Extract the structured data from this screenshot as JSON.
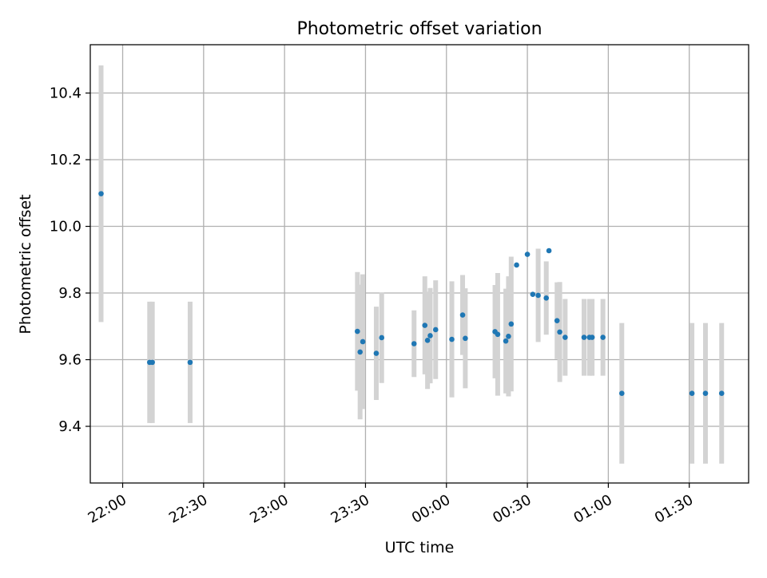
{
  "chart_data": {
    "type": "scatter",
    "title": "Photometric offset variation",
    "xlabel": "UTC time",
    "ylabel": "Photometric offset",
    "x_axis_type": "time",
    "x_reference_date": "",
    "xlim": [
      "21:48",
      "01:52"
    ],
    "ylim": [
      9.23,
      10.545
    ],
    "grid": true,
    "x_ticks": [
      "22:00",
      "22:30",
      "23:00",
      "23:30",
      "00:00",
      "00:30",
      "01:00",
      "01:30"
    ],
    "y_ticks": [
      9.4,
      9.6,
      9.8,
      10.0,
      10.2,
      10.4
    ],
    "y_tick_labels": [
      "9.4",
      "9.6",
      "9.8",
      "10.0",
      "10.2",
      "10.4"
    ],
    "colors": {
      "points": "#1f77b4",
      "errorbars": "#d3d3d3",
      "grid": "#b0b0b0"
    },
    "series": [
      {
        "points": [
          {
            "x": "21:52",
            "y": 10.098,
            "err": 0.385
          },
          {
            "x": "22:10",
            "y": 9.592,
            "err": 0.182
          },
          {
            "x": "22:11",
            "y": 9.592,
            "err": 0.182
          },
          {
            "x": "22:25",
            "y": 9.592,
            "err": 0.182
          },
          {
            "x": "23:27",
            "y": 9.685,
            "err": 0.178
          },
          {
            "x": "23:28",
            "y": 9.623,
            "err": 0.202
          },
          {
            "x": "23:29",
            "y": 9.654,
            "err": 0.202
          },
          {
            "x": "23:34",
            "y": 9.619,
            "err": 0.14
          },
          {
            "x": "23:36",
            "y": 9.666,
            "err": 0.136
          },
          {
            "x": "23:48",
            "y": 9.648,
            "err": 0.1
          },
          {
            "x": "23:52",
            "y": 9.703,
            "err": 0.147
          },
          {
            "x": "23:53",
            "y": 9.658,
            "err": 0.146
          },
          {
            "x": "23:54",
            "y": 9.672,
            "err": 0.143
          },
          {
            "x": "23:56",
            "y": 9.69,
            "err": 0.148
          },
          {
            "x": "00:02",
            "y": 9.661,
            "err": 0.174
          },
          {
            "x": "00:06",
            "y": 9.734,
            "err": 0.12
          },
          {
            "x": "00:07",
            "y": 9.664,
            "err": 0.15
          },
          {
            "x": "00:18",
            "y": 9.684,
            "err": 0.14
          },
          {
            "x": "00:19",
            "y": 9.676,
            "err": 0.184
          },
          {
            "x": "00:22",
            "y": 9.656,
            "err": 0.157
          },
          {
            "x": "00:23",
            "y": 9.67,
            "err": 0.18
          },
          {
            "x": "00:24",
            "y": 9.707,
            "err": 0.202
          },
          {
            "x": "00:26",
            "y": 9.884,
            "err": 0.0
          },
          {
            "x": "00:30",
            "y": 9.916,
            "err": 0.0
          },
          {
            "x": "00:32",
            "y": 9.796,
            "err": 0.0
          },
          {
            "x": "00:34",
            "y": 9.793,
            "err": 0.14
          },
          {
            "x": "00:37",
            "y": 9.785,
            "err": 0.11
          },
          {
            "x": "00:38",
            "y": 9.927,
            "err": 0.0
          },
          {
            "x": "00:41",
            "y": 9.717,
            "err": 0.115
          },
          {
            "x": "00:42",
            "y": 9.683,
            "err": 0.15
          },
          {
            "x": "00:44",
            "y": 9.667,
            "err": 0.115
          },
          {
            "x": "00:51",
            "y": 9.667,
            "err": 0.115
          },
          {
            "x": "00:53",
            "y": 9.667,
            "err": 0.115
          },
          {
            "x": "00:54",
            "y": 9.667,
            "err": 0.115
          },
          {
            "x": "00:58",
            "y": 9.667,
            "err": 0.115
          },
          {
            "x": "01:05",
            "y": 9.499,
            "err": 0.211
          },
          {
            "x": "01:31",
            "y": 9.499,
            "err": 0.211
          },
          {
            "x": "01:36",
            "y": 9.499,
            "err": 0.211
          },
          {
            "x": "01:42",
            "y": 9.499,
            "err": 0.211
          }
        ]
      }
    ]
  }
}
